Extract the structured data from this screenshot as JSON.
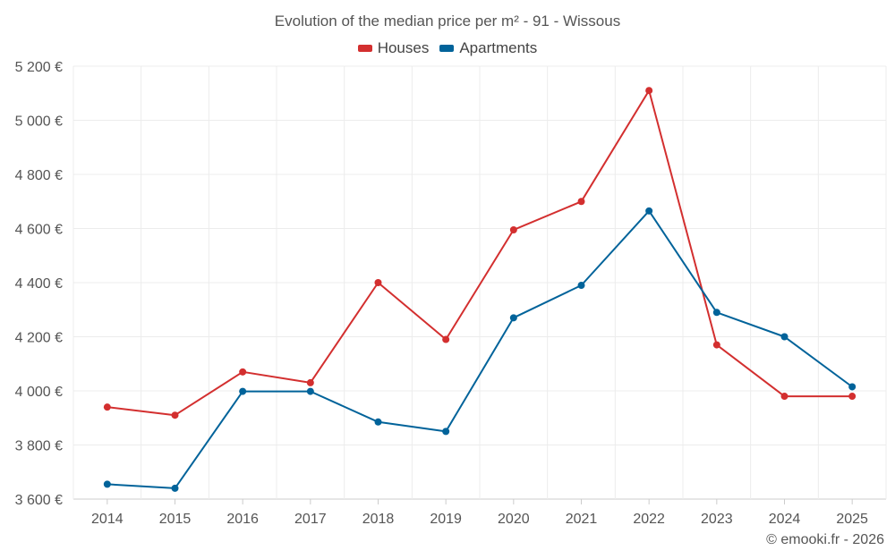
{
  "chart_data": {
    "type": "line",
    "title": "Evolution of the median price per m² - 91 - Wissous",
    "categories": [
      "2014",
      "2015",
      "2016",
      "2017",
      "2018",
      "2019",
      "2020",
      "2021",
      "2022",
      "2023",
      "2024",
      "2025"
    ],
    "series": [
      {
        "name": "Houses",
        "color": "#d32f2f",
        "values": [
          3940,
          3910,
          4070,
          4030,
          4400,
          4190,
          4595,
          4700,
          5110,
          4170,
          3980,
          3980
        ]
      },
      {
        "name": "Apartments",
        "color": "#01639a",
        "values": [
          3655,
          3640,
          3998,
          3998,
          3885,
          3850,
          4270,
          4390,
          4665,
          4290,
          4200,
          4015
        ]
      }
    ],
    "ylim": [
      3600,
      5200
    ],
    "yticks": [
      3600,
      3800,
      4000,
      4200,
      4400,
      4600,
      4800,
      5000,
      5200
    ],
    "ytick_labels": [
      "3 600 €",
      "3 800 €",
      "4 000 €",
      "4 200 €",
      "4 400 €",
      "4 600 €",
      "4 800 €",
      "5 000 €",
      "5 200 €"
    ],
    "legend_position": "top-center",
    "grid": true
  },
  "credit": "© emooki.fr - 2026"
}
